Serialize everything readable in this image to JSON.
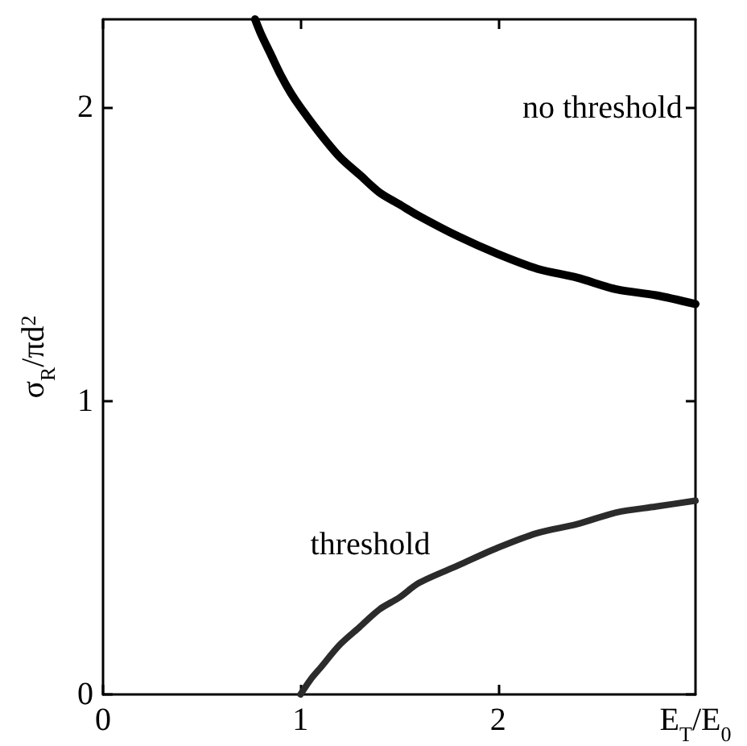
{
  "chart_data": {
    "type": "line",
    "xlabel": "E$_{T}$/E$_{0}$",
    "ylabel": "σ$_{R}$/πd$^{2}$",
    "xlim": [
      0,
      3
    ],
    "xticks": [
      0,
      1,
      2
    ],
    "ylim": [
      0,
      2.3
    ],
    "yticks": [
      0,
      1,
      2
    ],
    "grid": false,
    "marker": "none",
    "line_style": "solid",
    "series": [
      {
        "name": "no threshold",
        "color": "#000000",
        "x": [
          0.77,
          0.8,
          0.85,
          0.9,
          0.95,
          1.0,
          1.1,
          1.2,
          1.3,
          1.4,
          1.5,
          1.6,
          1.8,
          2.0,
          2.2,
          2.4,
          2.6,
          2.8,
          3.0
        ],
        "values": [
          2.3,
          2.25,
          2.18,
          2.11,
          2.05,
          2.0,
          1.91,
          1.83,
          1.77,
          1.71,
          1.67,
          1.63,
          1.56,
          1.5,
          1.45,
          1.42,
          1.38,
          1.36,
          1.33
        ]
      },
      {
        "name": "threshold",
        "color": "#2b2b2b",
        "x": [
          1.0,
          1.05,
          1.1,
          1.2,
          1.3,
          1.4,
          1.5,
          1.6,
          1.8,
          2.0,
          2.2,
          2.4,
          2.6,
          2.8,
          3.0
        ],
        "values": [
          0,
          0.05,
          0.09,
          0.17,
          0.23,
          0.29,
          0.33,
          0.38,
          0.44,
          0.5,
          0.55,
          0.58,
          0.62,
          0.64,
          0.66
        ]
      }
    ]
  }
}
